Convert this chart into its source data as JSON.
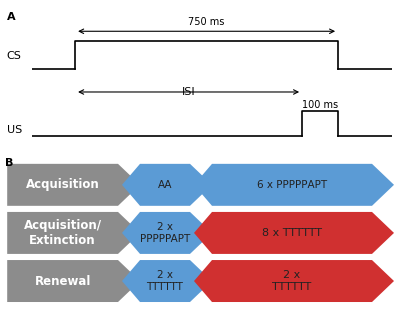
{
  "panel_a_label": "A",
  "panel_b_label": "B",
  "cs_label": "CS",
  "us_label": "US",
  "isi_label": "ISI",
  "ms750_label": "750 ms",
  "ms100_label": "100 ms",
  "rows": [
    {
      "gray_label": "Acquisition",
      "blue1_label": "AA",
      "blue2_label": "6 x PPPPPАPT",
      "red_label": null,
      "has_red": false
    },
    {
      "gray_label": "Acquisition/\nExtinction",
      "blue1_label": "2 x\nPPPPPAPT",
      "blue2_label": null,
      "red_label": "8 x TTTTTT",
      "has_red": true
    },
    {
      "gray_label": "Renewal",
      "blue1_label": "2 x\nTTTTTT",
      "blue2_label": null,
      "red_label": "2 x\nTTTTTT",
      "has_red": true
    }
  ],
  "gray_color": "#8c8c8c",
  "blue_color": "#5b9bd5",
  "red_color": "#d03030",
  "white_text": "#ffffff",
  "dark_text": "#222222",
  "bg_color": "#ffffff"
}
